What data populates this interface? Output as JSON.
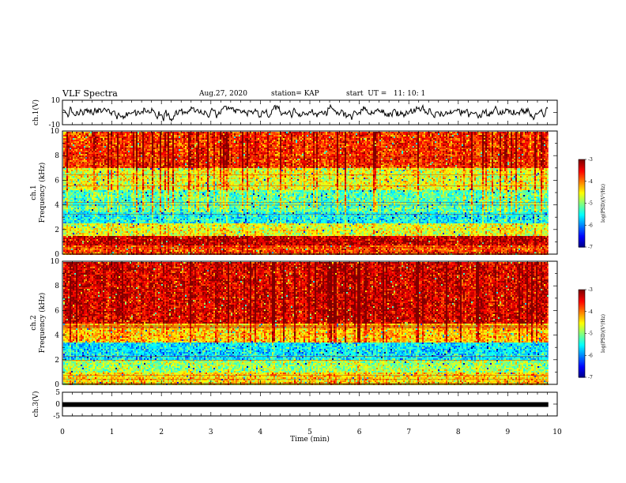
{
  "header": {
    "title": "VLF Spectra",
    "date": "Aug.27, 2020",
    "station": "station= KAP",
    "start": "start  UT =   11: 10: 1"
  },
  "chart_data": [
    {
      "type": "line",
      "name": "ch1-waveform",
      "ylabel": "ch.1(V)",
      "ylim": [
        -10,
        10
      ],
      "yticks": [
        "10",
        "-10"
      ],
      "xlim": [
        0,
        10
      ],
      "x_end": 9.82,
      "description_values": "waveform oscillating roughly between -5 and 5 V around 0",
      "line_color": "#000000"
    },
    {
      "type": "heatmap",
      "name": "ch1-spectrogram",
      "ylabel": [
        "ch.1",
        "Frequency  (kHz)"
      ],
      "ylim": [
        0,
        10
      ],
      "yticks": [
        "0",
        "2",
        "4",
        "6",
        "8",
        "10"
      ],
      "xlim": [
        0,
        10
      ],
      "x_end": 9.82,
      "colorbar": {
        "label": "log(PSD)(V²/Hz)",
        "range": [
          -7,
          -3
        ],
        "ticks": [
          "-3",
          "-4",
          "-5",
          "-6",
          "-7"
        ]
      },
      "bands": [
        [
          0,
          0.8,
          -3.8
        ],
        [
          0.8,
          1.6,
          -3.3
        ],
        [
          1.6,
          2.6,
          -4.6
        ],
        [
          2.6,
          3.5,
          -5.5
        ],
        [
          3.5,
          5.2,
          -5.2
        ],
        [
          5.2,
          7.0,
          -4.6
        ],
        [
          7.0,
          10,
          -3.7
        ]
      ]
    },
    {
      "type": "heatmap",
      "name": "ch2-spectrogram",
      "ylabel": [
        "ch.2",
        "Frequency  (kHz)"
      ],
      "ylim": [
        0,
        10
      ],
      "yticks": [
        "0",
        "2",
        "4",
        "6",
        "8",
        "10"
      ],
      "xlim": [
        0,
        10
      ],
      "x_end": 9.82,
      "colorbar": {
        "label": "log(PSD)(V²/Hz)",
        "range": [
          -7,
          -3
        ],
        "ticks": [
          "-3",
          "-4",
          "-5",
          "-6",
          "-7"
        ]
      },
      "bands": [
        [
          0,
          1.0,
          -4.4
        ],
        [
          1.0,
          2.0,
          -4.9
        ],
        [
          2.0,
          3.5,
          -5.6
        ],
        [
          3.5,
          5.0,
          -4.3
        ],
        [
          5.0,
          10,
          -3.4
        ]
      ]
    },
    {
      "type": "line",
      "name": "ch3-waveform",
      "ylabel": "ch.3(V)",
      "ylim": [
        -5,
        5
      ],
      "yticks": [
        "5",
        "0",
        "-5"
      ],
      "xlim": [
        0,
        10
      ],
      "x_end": 9.82,
      "value": -0.2,
      "xlabel": "Time  (min)",
      "xticks": [
        "0",
        "1",
        "2",
        "3",
        "4",
        "5",
        "6",
        "7",
        "8",
        "9",
        "10"
      ]
    }
  ]
}
